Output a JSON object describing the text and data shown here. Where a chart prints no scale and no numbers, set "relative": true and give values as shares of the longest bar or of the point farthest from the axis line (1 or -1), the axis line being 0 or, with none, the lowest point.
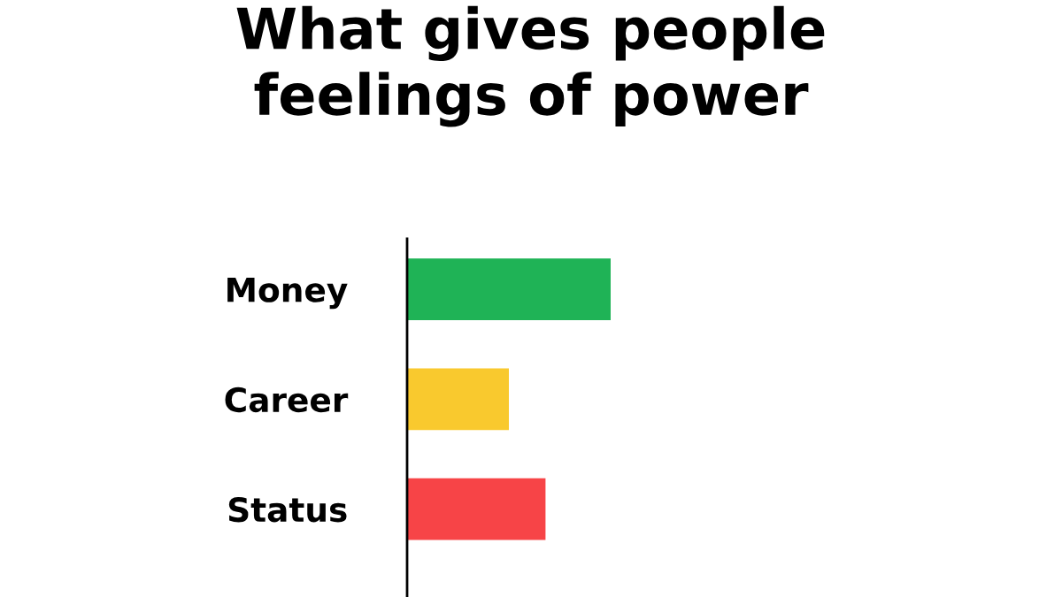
{
  "chart_data": {
    "type": "bar",
    "orientation": "horizontal",
    "relative": true,
    "title": "What gives people\nfeelings of power",
    "categories": [
      "Money",
      "Career",
      "Status"
    ],
    "values": [
      1,
      0.5,
      0.68
    ],
    "colors": [
      "#1fb356",
      "#f9c92e",
      "#f74447"
    ],
    "grid": false,
    "legend": false
  }
}
